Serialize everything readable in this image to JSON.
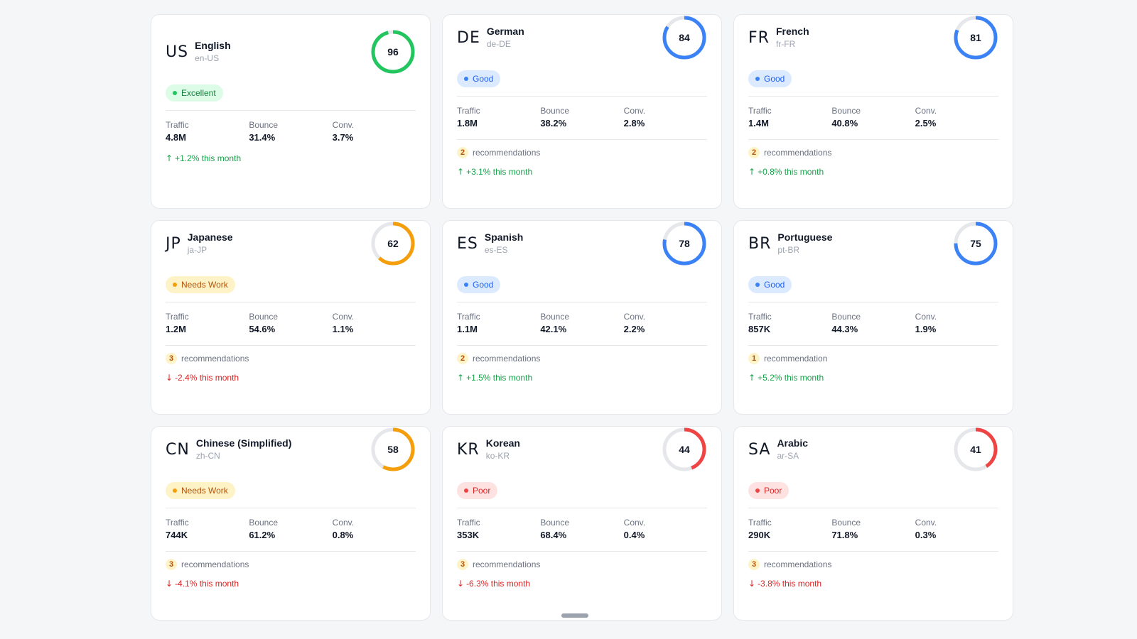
{
  "colors": {
    "excellent": "#22c55e",
    "good": "#3b82f6",
    "needs_work": "#f59e0b",
    "poor": "#ef4444",
    "track": "#e5e7eb"
  },
  "stat_labels": {
    "traffic": "Traffic",
    "bounce": "Bounce",
    "conv": "Conv."
  },
  "cards": [
    {
      "code": "US",
      "name": "English",
      "locale": "en-US",
      "score": 96,
      "status": "Excellent",
      "status_key": "excellent",
      "traffic": "4.8M",
      "bounce": "31.4%",
      "conv": "3.7%",
      "rec_count": "",
      "rec_label": "",
      "trend_arrow": "↑",
      "trend": "+1.2% this month",
      "trend_dir": "up"
    },
    {
      "code": "DE",
      "name": "German",
      "locale": "de-DE",
      "score": 84,
      "status": "Good",
      "status_key": "good",
      "traffic": "1.8M",
      "bounce": "38.2%",
      "conv": "2.8%",
      "rec_count": "2",
      "rec_label": "recommendations",
      "trend_arrow": "↑",
      "trend": "+3.1% this month",
      "trend_dir": "up"
    },
    {
      "code": "FR",
      "name": "French",
      "locale": "fr-FR",
      "score": 81,
      "status": "Good",
      "status_key": "good",
      "traffic": "1.4M",
      "bounce": "40.8%",
      "conv": "2.5%",
      "rec_count": "2",
      "rec_label": "recommendations",
      "trend_arrow": "↑",
      "trend": "+0.8% this month",
      "trend_dir": "up"
    },
    {
      "code": "JP",
      "name": "Japanese",
      "locale": "ja-JP",
      "score": 62,
      "status": "Needs Work",
      "status_key": "needs",
      "traffic": "1.2M",
      "bounce": "54.6%",
      "conv": "1.1%",
      "rec_count": "3",
      "rec_label": "recommendations",
      "trend_arrow": "↓",
      "trend": "-2.4% this month",
      "trend_dir": "down"
    },
    {
      "code": "ES",
      "name": "Spanish",
      "locale": "es-ES",
      "score": 78,
      "status": "Good",
      "status_key": "good",
      "traffic": "1.1M",
      "bounce": "42.1%",
      "conv": "2.2%",
      "rec_count": "2",
      "rec_label": "recommendations",
      "trend_arrow": "↑",
      "trend": "+1.5% this month",
      "trend_dir": "up"
    },
    {
      "code": "BR",
      "name": "Portuguese",
      "locale": "pt-BR",
      "score": 75,
      "status": "Good",
      "status_key": "good",
      "traffic": "857K",
      "bounce": "44.3%",
      "conv": "1.9%",
      "rec_count": "1",
      "rec_label": "recommendation",
      "trend_arrow": "↑",
      "trend": "+5.2% this month",
      "trend_dir": "up"
    },
    {
      "code": "CN",
      "name": "Chinese (Simplified)",
      "locale": "zh-CN",
      "score": 58,
      "status": "Needs Work",
      "status_key": "needs",
      "traffic": "744K",
      "bounce": "61.2%",
      "conv": "0.8%",
      "rec_count": "3",
      "rec_label": "recommendations",
      "trend_arrow": "↓",
      "trend": "-4.1% this month",
      "trend_dir": "down"
    },
    {
      "code": "KR",
      "name": "Korean",
      "locale": "ko-KR",
      "score": 44,
      "status": "Poor",
      "status_key": "poor",
      "traffic": "353K",
      "bounce": "68.4%",
      "conv": "0.4%",
      "rec_count": "3",
      "rec_label": "recommendations",
      "trend_arrow": "↓",
      "trend": "-6.3% this month",
      "trend_dir": "down"
    },
    {
      "code": "SA",
      "name": "Arabic",
      "locale": "ar-SA",
      "score": 41,
      "status": "Poor",
      "status_key": "poor",
      "traffic": "290K",
      "bounce": "71.8%",
      "conv": "0.3%",
      "rec_count": "3",
      "rec_label": "recommendations",
      "trend_arrow": "↓",
      "trend": "-3.8% this month",
      "trend_dir": "down"
    }
  ]
}
